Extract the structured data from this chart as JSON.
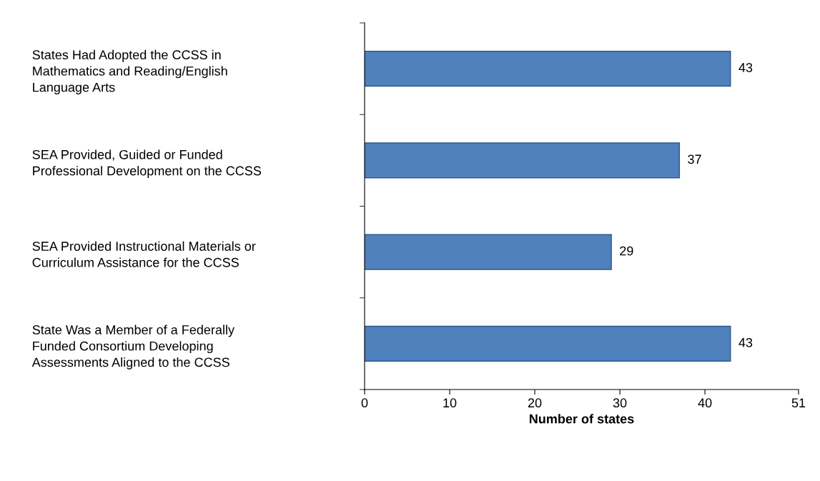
{
  "chart_data": {
    "type": "bar",
    "orientation": "horizontal",
    "xlabel": "Number of states",
    "categories": [
      "States Had Adopted the CCSS in\nMathematics and Reading/English\nLanguage Arts",
      "SEA Provided, Guided or Funded\nProfessional Development on the CCSS",
      "SEA Provided Instructional Materials or\nCurriculum Assistance for the CCSS",
      "State Was a Member of a Federally\nFunded Consortium Developing\nAssessments Aligned to the CCSS"
    ],
    "values": [
      43,
      37,
      29,
      43
    ],
    "color": "#4f81bd",
    "xlim": [
      0,
      51
    ],
    "xticks": [
      0,
      10,
      20,
      30,
      40,
      51
    ],
    "data_labels": true,
    "grid": false,
    "legend": false
  }
}
